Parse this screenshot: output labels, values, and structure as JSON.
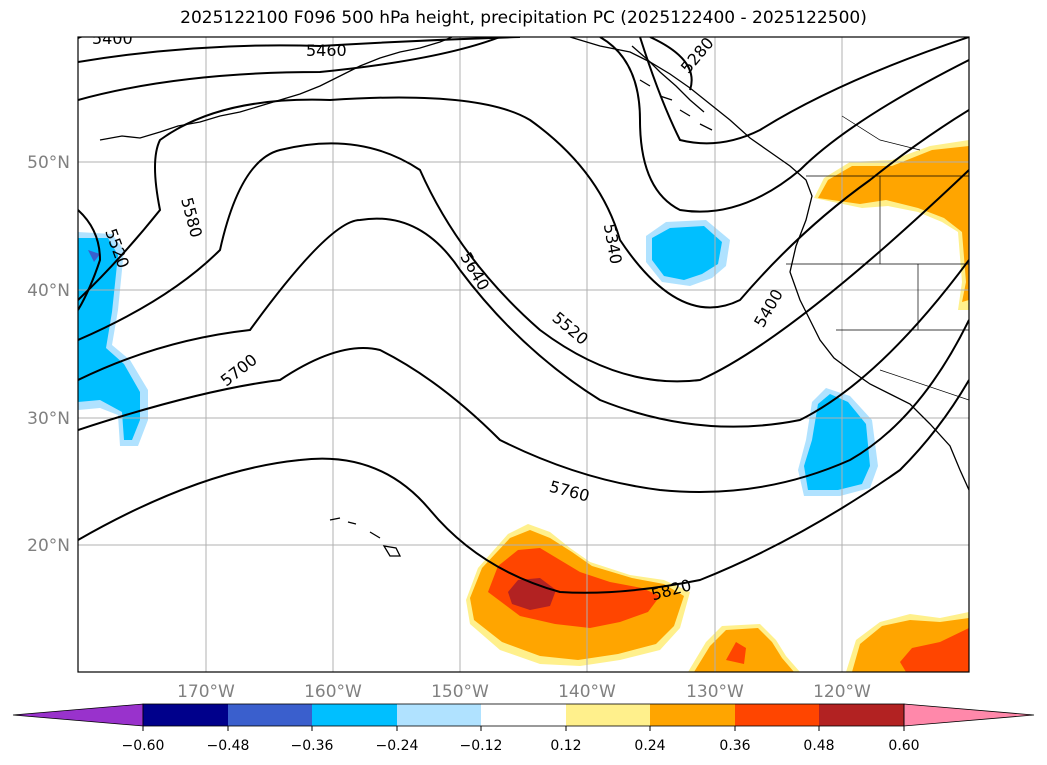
{
  "title": "2025122100 F096 500 hPa height, precipitation PC (2025122400 - 2025122500)",
  "lat_labels": [
    "20°N",
    "30°N",
    "40°N",
    "50°N"
  ],
  "lon_labels": [
    "170°W",
    "160°W",
    "150°W",
    "140°W",
    "130°W",
    "120°W"
  ],
  "contour_labels": [
    "5400",
    "5460",
    "5280",
    "5520",
    "5580",
    "5340",
    "5640",
    "5520",
    "5400",
    "5700",
    "5760",
    "5820"
  ],
  "colorbar": {
    "ticks": [
      "−0.60",
      "−0.48",
      "−0.36",
      "−0.24",
      "−0.12",
      "0.12",
      "0.24",
      "0.36",
      "0.48",
      "0.60"
    ],
    "colors": [
      "#9932cc",
      "#00008b",
      "#3a5fcd",
      "#00bfff",
      "#b0e2ff",
      "#ffffff",
      "#fff08c",
      "#ffa500",
      "#ff4500",
      "#b22222",
      "#ff88aa"
    ]
  }
}
